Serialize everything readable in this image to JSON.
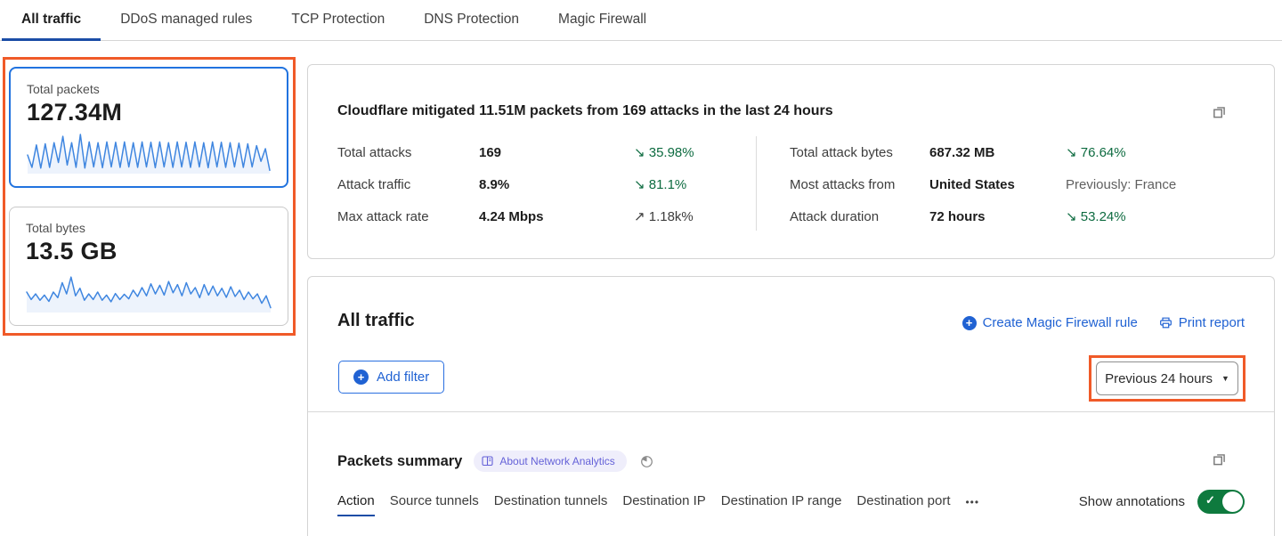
{
  "colors": {
    "link_blue": "#2062d3",
    "active_tab_blue": "#1b4da6",
    "selected_card_border": "#2173df",
    "highlight_orange": "#f05a28",
    "trend_green": "#0d6b40",
    "toggle_green": "#0e7a3e",
    "badge_purple": "#6562d8",
    "sparkline_blue": "#3f86e0"
  },
  "top_tabs": {
    "items": [
      {
        "label": "All traffic",
        "active": true
      },
      {
        "label": "DDoS managed rules",
        "active": false
      },
      {
        "label": "TCP Protection",
        "active": false
      },
      {
        "label": "DNS Protection",
        "active": false
      },
      {
        "label": "Magic Firewall",
        "active": false
      }
    ]
  },
  "summary_cards": {
    "packets": {
      "label": "Total packets",
      "value": "127.34M",
      "spark": [
        0.45,
        0.12,
        0.72,
        0.1,
        0.75,
        0.12,
        0.78,
        0.25,
        0.95,
        0.18,
        0.78,
        0.12,
        1.0,
        0.1,
        0.8,
        0.13,
        0.78,
        0.11,
        0.8,
        0.13,
        0.79,
        0.12,
        0.8,
        0.13,
        0.78,
        0.12,
        0.8,
        0.13,
        0.79,
        0.11,
        0.8,
        0.13,
        0.78,
        0.12,
        0.8,
        0.13,
        0.79,
        0.12,
        0.8,
        0.13,
        0.78,
        0.11,
        0.8,
        0.13,
        0.79,
        0.12,
        0.78,
        0.13,
        0.77,
        0.12,
        0.75,
        0.13,
        0.7,
        0.28,
        0.62,
        0.04
      ]
    },
    "bytes": {
      "label": "Total bytes",
      "value": "13.5 GB",
      "spark": [
        0.5,
        0.3,
        0.45,
        0.28,
        0.42,
        0.25,
        0.5,
        0.35,
        0.75,
        0.45,
        0.9,
        0.4,
        0.6,
        0.28,
        0.45,
        0.3,
        0.5,
        0.28,
        0.42,
        0.24,
        0.46,
        0.3,
        0.44,
        0.32,
        0.55,
        0.38,
        0.62,
        0.4,
        0.72,
        0.45,
        0.68,
        0.42,
        0.78,
        0.48,
        0.7,
        0.4,
        0.75,
        0.45,
        0.62,
        0.35,
        0.7,
        0.42,
        0.66,
        0.4,
        0.6,
        0.36,
        0.64,
        0.38,
        0.55,
        0.3,
        0.5,
        0.32,
        0.45,
        0.2,
        0.4,
        0.08
      ]
    }
  },
  "attack_summary": {
    "headline": "Cloudflare mitigated 11.51M packets from 169 attacks in the last 24 hours",
    "stats_left": [
      {
        "label": "Total attacks",
        "value": "169",
        "trend": "↘ 35.98%"
      },
      {
        "label": "Attack traffic",
        "value": "8.9%",
        "trend": "↘ 81.1%"
      },
      {
        "label": "Max attack rate",
        "value": "4.24 Mbps",
        "trend": "↗ 1.18k%"
      }
    ],
    "stats_right": [
      {
        "label": "Total attack bytes",
        "value": "687.32 MB",
        "trend": "↘ 76.64%"
      },
      {
        "label": "Most attacks from",
        "value": "United States",
        "trend": "Previously: France"
      },
      {
        "label": "Attack duration",
        "value": "72 hours",
        "trend": "↘ 53.24%"
      }
    ]
  },
  "traffic_panel": {
    "title": "All traffic",
    "create_rule_label": "Create Magic Firewall rule",
    "print_label": "Print report",
    "add_filter_label": "Add filter",
    "plus_glyph": "+",
    "time_range": "Previous 24 hours"
  },
  "packets_summary": {
    "title": "Packets summary",
    "badge_label": "About Network Analytics",
    "tabs": [
      {
        "label": "Action",
        "active": true
      },
      {
        "label": "Source tunnels",
        "active": false
      },
      {
        "label": "Destination tunnels",
        "active": false
      },
      {
        "label": "Destination IP",
        "active": false
      },
      {
        "label": "Destination IP range",
        "active": false
      },
      {
        "label": "Destination port",
        "active": false
      }
    ],
    "more_glyph": "•••",
    "annotations_label": "Show annotations",
    "annotations_on": true,
    "check_glyph": "✓"
  }
}
